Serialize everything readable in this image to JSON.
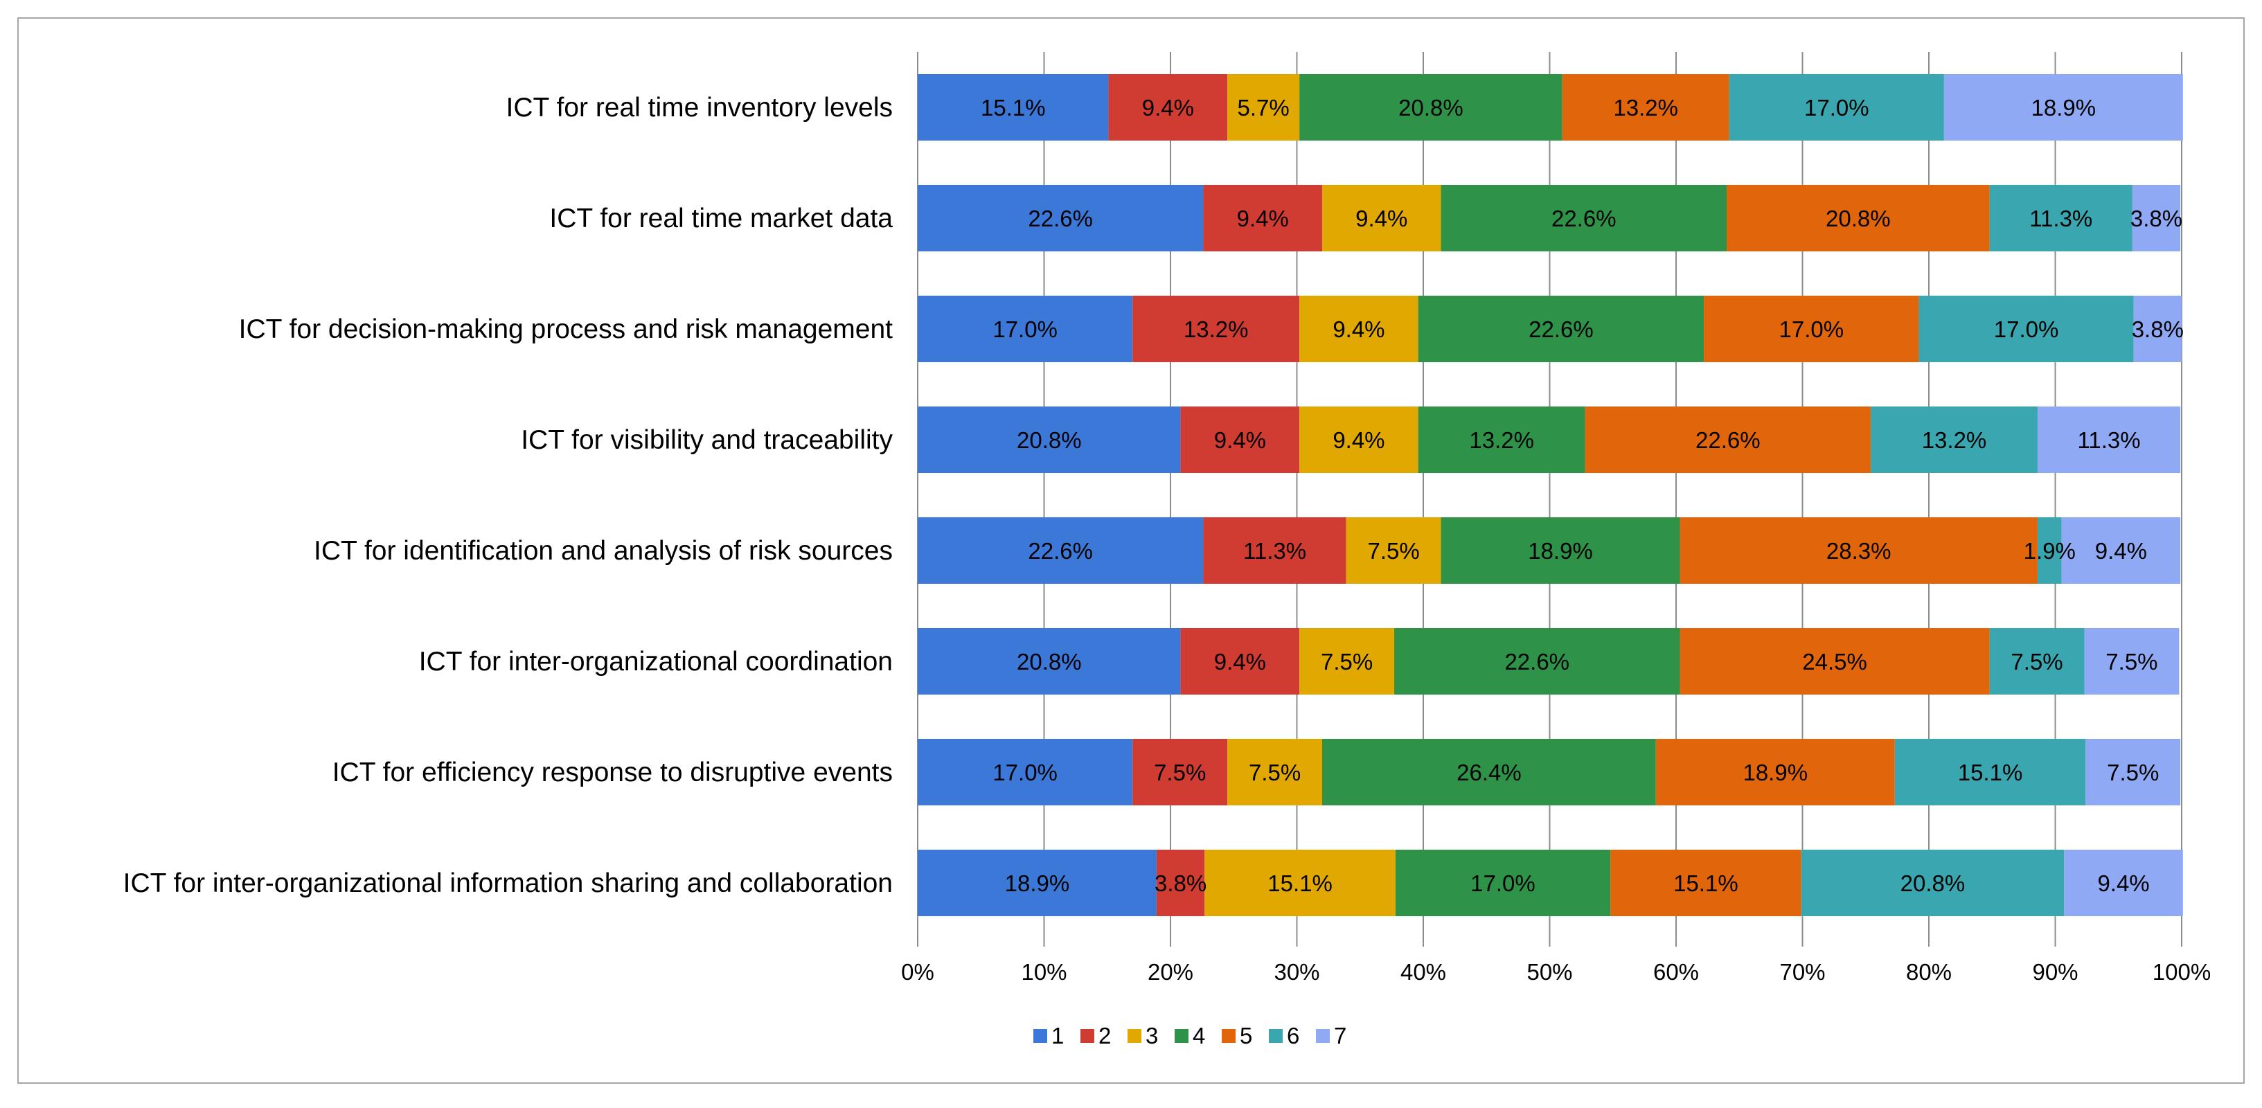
{
  "chart_data": {
    "type": "bar",
    "orientation": "horizontal",
    "stacked": "percent",
    "title": "",
    "xlabel": "",
    "ylabel": "",
    "xlim": [
      0,
      100
    ],
    "grid": true,
    "legend_position": "bottom",
    "categories": [
      "ICT for real time inventory levels",
      "ICT for real time market data",
      "ICT for decision-making process and risk management",
      "ICT for visibility and traceability",
      "ICT for identification and analysis of risk sources",
      "ICT for inter-organizational coordination",
      "ICT for efficiency response to disruptive events",
      "ICT for inter-organizational information sharing and collaboration"
    ],
    "x_ticks": [
      "0%",
      "10%",
      "20%",
      "30%",
      "40%",
      "50%",
      "60%",
      "70%",
      "80%",
      "90%",
      "100%"
    ],
    "series": [
      {
        "name": "1",
        "color": "#3c78d8",
        "values": [
          15.1,
          22.6,
          17.0,
          20.8,
          22.6,
          20.8,
          17.0,
          18.9
        ]
      },
      {
        "name": "2",
        "color": "#d13c32",
        "values": [
          9.4,
          9.4,
          13.2,
          9.4,
          11.3,
          9.4,
          7.5,
          3.8
        ]
      },
      {
        "name": "3",
        "color": "#e0a800",
        "values": [
          5.7,
          9.4,
          9.4,
          9.4,
          7.5,
          7.5,
          7.5,
          15.1
        ]
      },
      {
        "name": "4",
        "color": "#2e9348",
        "values": [
          20.8,
          22.6,
          22.6,
          13.2,
          18.9,
          22.6,
          26.4,
          17.0
        ]
      },
      {
        "name": "5",
        "color": "#e1650b",
        "values": [
          13.2,
          20.8,
          17.0,
          22.6,
          28.3,
          24.5,
          18.9,
          15.1
        ]
      },
      {
        "name": "6",
        "color": "#3aa7b0",
        "values": [
          17.0,
          11.3,
          17.0,
          13.2,
          1.9,
          7.5,
          15.1,
          20.8
        ]
      },
      {
        "name": "7",
        "color": "#8fa9f5",
        "values": [
          18.9,
          3.8,
          3.8,
          11.3,
          9.4,
          7.5,
          7.5,
          9.4
        ]
      }
    ]
  }
}
